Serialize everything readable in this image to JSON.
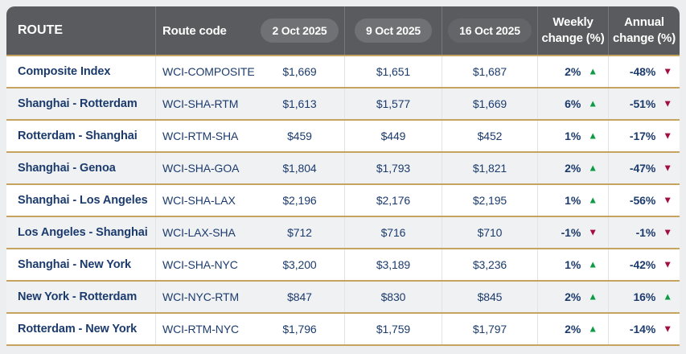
{
  "colors": {
    "page_bg": "#edeef0",
    "header_bg": "#5a5b5e",
    "header_text": "#ffffff",
    "pill_bg": "#707174",
    "pill_bg_current": "#646568",
    "gold": "#c6a35e",
    "navy": "#1c3b6d",
    "green": "#0d9b48",
    "red": "#a50d3e",
    "row_bg": "#ffffff",
    "row_alt_bg": "#f0f1f3",
    "header_divider": "#76777a",
    "body_divider": "#e2e3e6"
  },
  "icons": {
    "up": "▲",
    "down": "▼"
  },
  "chart_data": {
    "type": "table",
    "columns": [
      {
        "label": "ROUTE",
        "kind": "text"
      },
      {
        "label": "Route code",
        "kind": "text"
      },
      {
        "label": "2 Oct 2025",
        "kind": "pill"
      },
      {
        "label": "9 Oct 2025",
        "kind": "pill"
      },
      {
        "label": "16 Oct 2025",
        "kind": "pill",
        "emphasis": true
      },
      {
        "label": "Weekly change (%)",
        "kind": "stacked",
        "lines": [
          "Weekly",
          "change (%)"
        ]
      },
      {
        "label": "Annual change (%)",
        "kind": "stacked",
        "lines": [
          "Annual",
          "change (%)"
        ]
      }
    ],
    "rows": [
      {
        "route": "Composite Index",
        "route_code": "WCI-COMPOSITE",
        "prices_usd": [
          1669,
          1651,
          1687
        ],
        "prices_display": [
          "$1,669",
          "$1,651",
          "$1,687"
        ],
        "weekly_change": {
          "value": "2%",
          "direction": "up"
        },
        "annual_change": {
          "value": "-48%",
          "direction": "down"
        },
        "emphasis": true
      },
      {
        "route": "Shanghai - Rotterdam",
        "route_code": "WCI-SHA-RTM",
        "prices_usd": [
          1613,
          1577,
          1669
        ],
        "prices_display": [
          "$1,613",
          "$1,577",
          "$1,669"
        ],
        "weekly_change": {
          "value": "6%",
          "direction": "up"
        },
        "annual_change": {
          "value": "-51%",
          "direction": "down"
        },
        "emphasis": false
      },
      {
        "route": "Rotterdam - Shanghai",
        "route_code": "WCI-RTM-SHA",
        "prices_usd": [
          459,
          449,
          452
        ],
        "prices_display": [
          "$459",
          "$449",
          "$452"
        ],
        "weekly_change": {
          "value": "1%",
          "direction": "up"
        },
        "annual_change": {
          "value": "-17%",
          "direction": "down"
        },
        "emphasis": false
      },
      {
        "route": "Shanghai - Genoa",
        "route_code": "WCI-SHA-GOA",
        "prices_usd": [
          1804,
          1793,
          1821
        ],
        "prices_display": [
          "$1,804",
          "$1,793",
          "$1,821"
        ],
        "weekly_change": {
          "value": "2%",
          "direction": "up"
        },
        "annual_change": {
          "value": "-47%",
          "direction": "down"
        },
        "emphasis": false
      },
      {
        "route": "Shanghai - Los Angeles",
        "route_code": "WCI-SHA-LAX",
        "prices_usd": [
          2196,
          2176,
          2195
        ],
        "prices_display": [
          "$2,196",
          "$2,176",
          "$2,195"
        ],
        "weekly_change": {
          "value": "1%",
          "direction": "up"
        },
        "annual_change": {
          "value": "-56%",
          "direction": "down"
        },
        "emphasis": false
      },
      {
        "route": "Los Angeles - Shanghai",
        "route_code": "WCI-LAX-SHA",
        "prices_usd": [
          712,
          716,
          710
        ],
        "prices_display": [
          "$712",
          "$716",
          "$710"
        ],
        "weekly_change": {
          "value": "-1%",
          "direction": "down"
        },
        "annual_change": {
          "value": "-1%",
          "direction": "down"
        },
        "emphasis": false
      },
      {
        "route": "Shanghai - New York",
        "route_code": "WCI-SHA-NYC",
        "prices_usd": [
          3200,
          3189,
          3236
        ],
        "prices_display": [
          "$3,200",
          "$3,189",
          "$3,236"
        ],
        "weekly_change": {
          "value": "1%",
          "direction": "up"
        },
        "annual_change": {
          "value": "-42%",
          "direction": "down"
        },
        "emphasis": false
      },
      {
        "route": "New York - Rotterdam",
        "route_code": "WCI-NYC-RTM",
        "prices_usd": [
          847,
          830,
          845
        ],
        "prices_display": [
          "$847",
          "$830",
          "$845"
        ],
        "weekly_change": {
          "value": "2%",
          "direction": "up"
        },
        "annual_change": {
          "value": "16%",
          "direction": "up"
        },
        "emphasis": false
      },
      {
        "route": "Rotterdam - New York",
        "route_code": "WCI-RTM-NYC",
        "prices_usd": [
          1796,
          1759,
          1797
        ],
        "prices_display": [
          "$1,796",
          "$1,759",
          "$1,797"
        ],
        "weekly_change": {
          "value": "2%",
          "direction": "up"
        },
        "annual_change": {
          "value": "-14%",
          "direction": "down"
        },
        "emphasis": false
      }
    ]
  }
}
